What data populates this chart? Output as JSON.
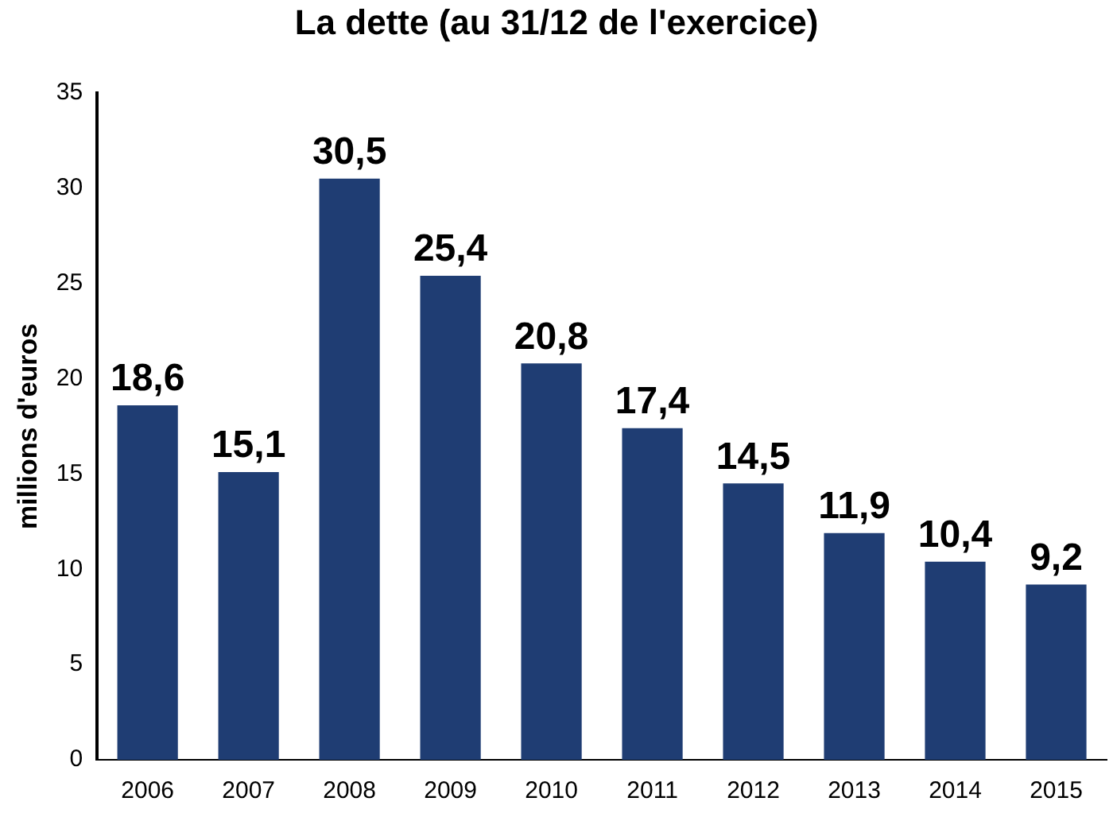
{
  "chart_data": {
    "type": "bar",
    "title": "La dette (au 31/12 de l'exercice)",
    "ylabel": "millions d'euros",
    "categories": [
      "2006",
      "2007",
      "2008",
      "2009",
      "2010",
      "2011",
      "2012",
      "2013",
      "2014",
      "2015"
    ],
    "values": [
      18.6,
      15.1,
      30.5,
      25.4,
      20.8,
      17.4,
      14.5,
      11.9,
      10.4,
      9.2
    ],
    "value_labels": [
      "18,6",
      "15,1",
      "30,5",
      "25,4",
      "20,8",
      "17,4",
      "14,5",
      "11,9",
      "10,4",
      "9,2"
    ],
    "color": "#1f3d73",
    "ylim": [
      0,
      35
    ],
    "yticks": [
      0,
      5,
      10,
      15,
      20,
      25,
      30,
      35
    ],
    "grid": false,
    "legend": false
  }
}
